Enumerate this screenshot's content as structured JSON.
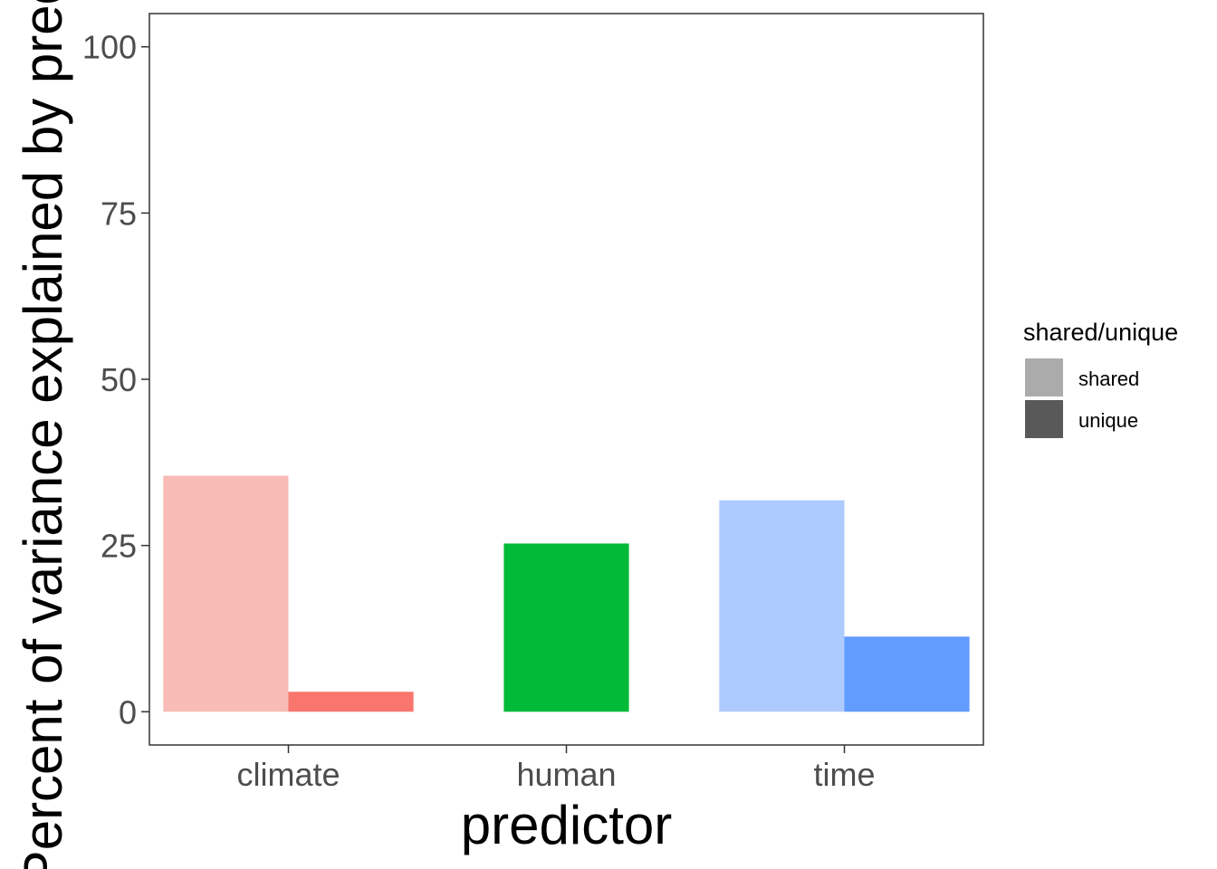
{
  "chart_data": {
    "type": "bar",
    "categories": [
      "climate",
      "human",
      "time"
    ],
    "xlabel": "predictor",
    "ylabel": "Percent of variance explained by predictor",
    "ylim": [
      -5,
      105
    ],
    "yticks": [
      0,
      25,
      50,
      75,
      100
    ],
    "grid": false,
    "bars": [
      {
        "category": "climate",
        "group": "shared",
        "value": 35.5,
        "color": "#F8BBB6"
      },
      {
        "category": "climate",
        "group": "unique",
        "value": 3.0,
        "color": "#F8766D"
      },
      {
        "category": "human",
        "group": "unique",
        "value": 25.3,
        "color": "#00BA38"
      },
      {
        "category": "time",
        "group": "shared",
        "value": 31.8,
        "color": "#AECBFF"
      },
      {
        "category": "time",
        "group": "unique",
        "value": 11.3,
        "color": "#619CFF"
      }
    ],
    "legend": {
      "title": "shared/unique",
      "placement": "right",
      "items": [
        {
          "label": "shared",
          "color": "#ABABAB"
        },
        {
          "label": "unique",
          "color": "#595959"
        }
      ]
    }
  }
}
